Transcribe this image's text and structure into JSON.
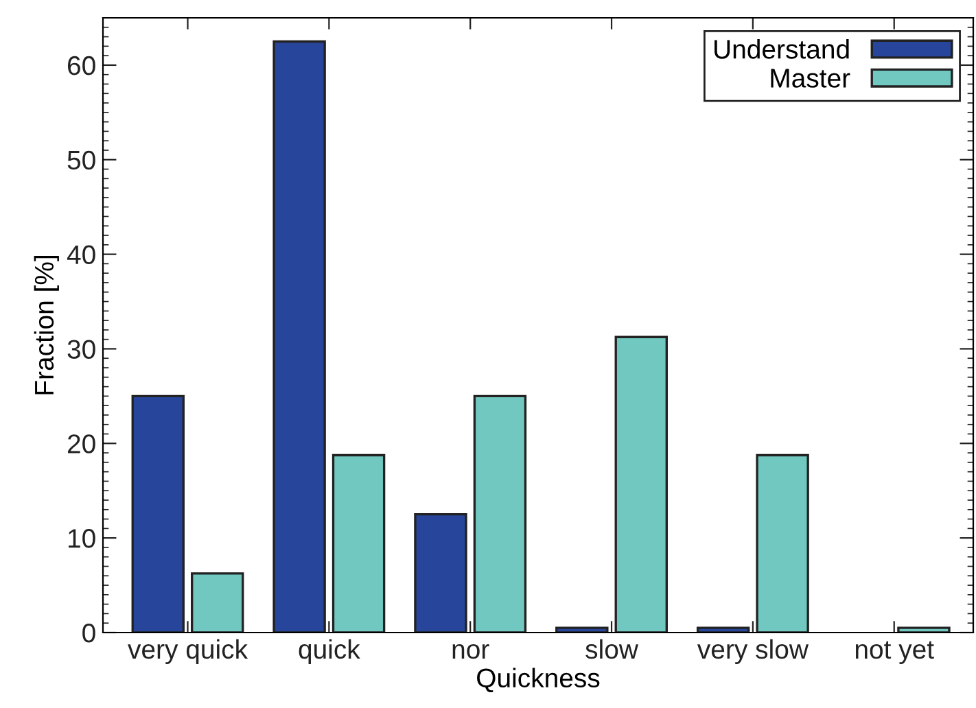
{
  "chart_data": {
    "type": "bar",
    "xlabel": "Quickness",
    "ylabel": "Fraction [%]",
    "categories": [
      "very quick",
      "quick",
      "nor",
      "slow",
      "very slow",
      "not yet"
    ],
    "series": [
      {
        "name": "Understand",
        "color": "#27459a",
        "values": [
          25,
          62.5,
          12.5,
          0.5,
          0.5,
          null
        ]
      },
      {
        "name": "Master",
        "color": "#70c8c0",
        "values": [
          6.25,
          18.75,
          25,
          31.25,
          18.75,
          0.5
        ]
      }
    ],
    "ylim": [
      0,
      65
    ],
    "yticks": [
      0,
      10,
      20,
      30,
      40,
      50,
      60
    ],
    "grid": false,
    "legend": "top right"
  }
}
